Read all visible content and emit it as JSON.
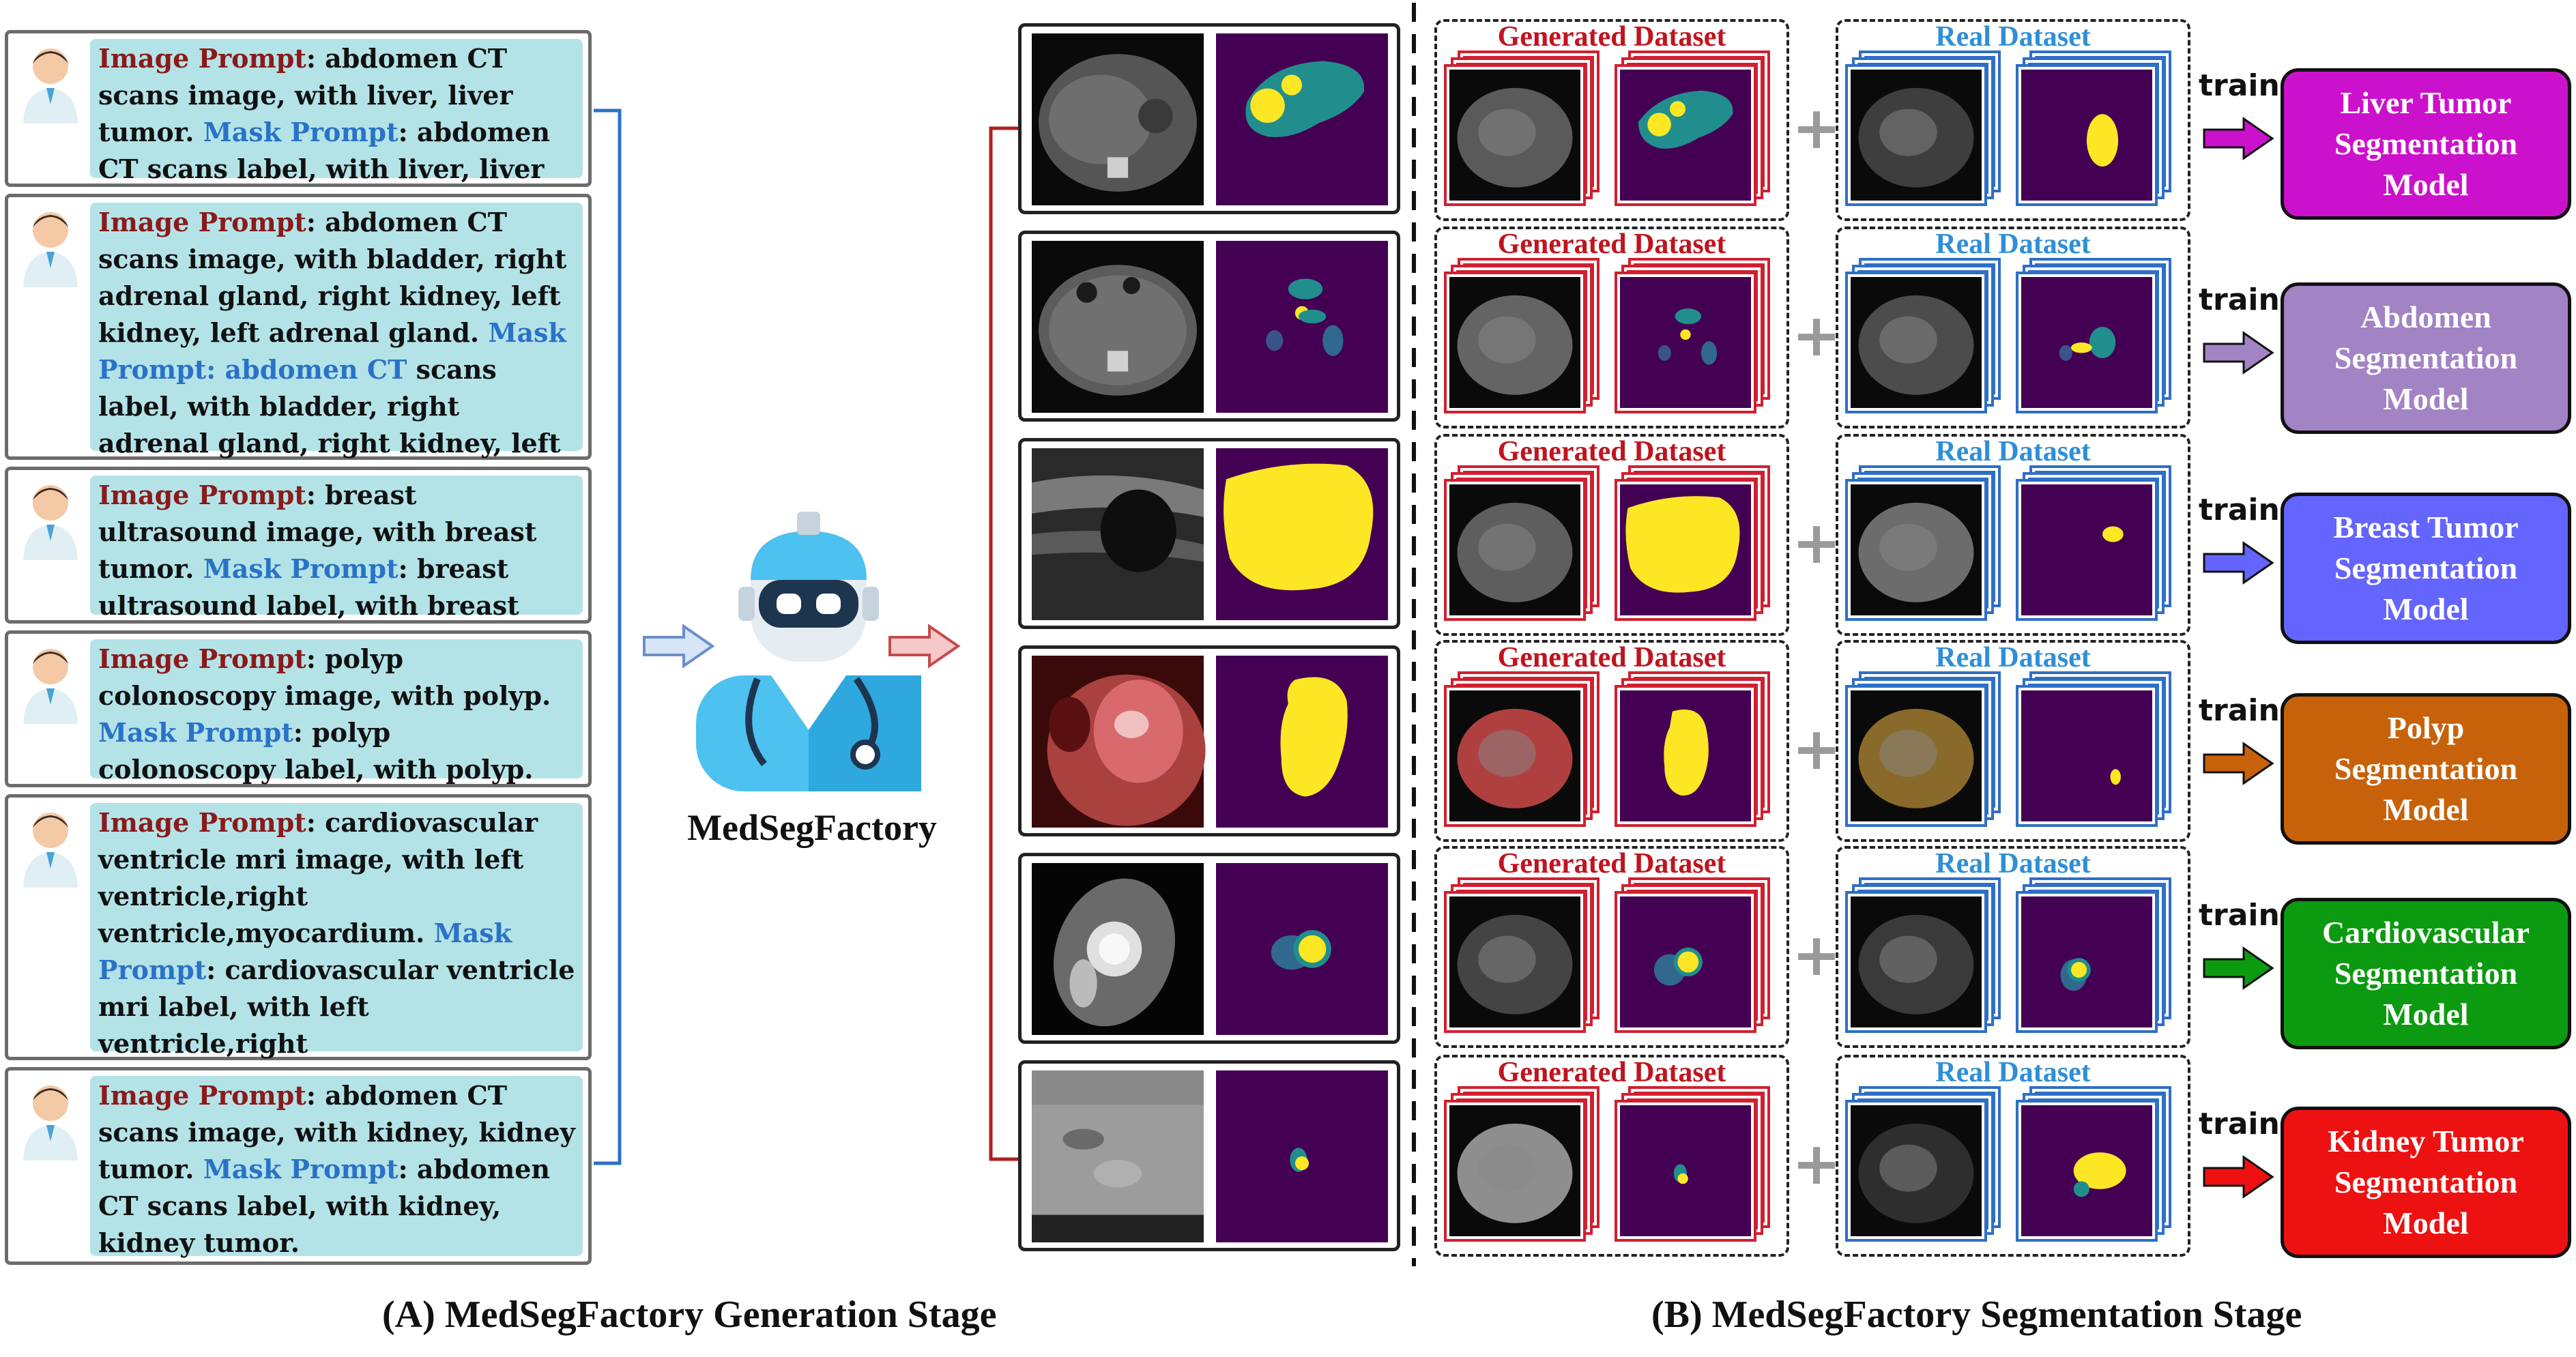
{
  "left_prompts": [
    {
      "image_label": "Image Prompt",
      "image_text": ": abdomen CT scans image, with liver, liver tumor. ",
      "mask_label": "Mask Prompt",
      "mask_text": ": abdomen CT scans label, with liver, liver tumor."
    },
    {
      "image_label": "Image Prompt",
      "image_text": ": abdomen CT scans image, with bladder, right adrenal gland, right kidney, left kidney, left adrenal gland. ",
      "mask_label": "Mask Prompt: abdomen CT",
      "mask_text": " scans label, with bladder, right adrenal gland, right kidney, left kidney, left adrenal gland."
    },
    {
      "image_label": "Image Prompt",
      "image_text": ": breast ultrasound image, with breast tumor. ",
      "mask_label": "Mask Prompt",
      "mask_text": ": breast ultrasound label, with breast tumor."
    },
    {
      "image_label": "Image Prompt",
      "image_text": ": polyp colonoscopy image, with polyp. ",
      "mask_label": "Mask Prompt",
      "mask_text": ": polyp colonoscopy label, with polyp."
    },
    {
      "image_label": "Image Prompt",
      "image_text": ": cardiovascular ventricle mri image, with left ventricle,right ventricle,myocardium. ",
      "mask_label": "Mask Prompt",
      "mask_text": ": cardiovascular ventricle mri label, with left ventricle,right ventricle,myocardium."
    },
    {
      "image_label": "Image Prompt",
      "image_text": ": abdomen CT scans image, with kidney, kidney tumor. ",
      "mask_label": "Mask Prompt",
      "mask_text": ": abdomen CT scans label, with kidney, kidney tumor."
    }
  ],
  "center": {
    "name": "MedSegFactory"
  },
  "datasets": {
    "generated": "Generated Dataset",
    "real": "Real Dataset",
    "plus": "+",
    "train": "train"
  },
  "models": [
    {
      "label": "Liver Tumor\nSegmentation\nModel",
      "color": "#cc11cc"
    },
    {
      "label": "Abdomen\nSegmentation\nModel",
      "color": "#a283c4"
    },
    {
      "label": "Breast Tumor\nSegmentation\nModel",
      "color": "#6464ff"
    },
    {
      "label": "Polyp\nSegmentation\nModel",
      "color": "#c8620a"
    },
    {
      "label": "Cardiovascular\nSegmentation\nModel",
      "color": "#0c9a10"
    },
    {
      "label": "Kidney Tumor\nSegmentation\nModel",
      "color": "#ee1111"
    }
  ],
  "captions": {
    "a": "(A) MedSegFactory Generation Stage",
    "b": "(B) MedSegFactory Segmentation Stage"
  },
  "colors": {
    "mask_bg": "#440154",
    "mask_teal": "#218e8d",
    "mask_yellow": "#fde725"
  }
}
